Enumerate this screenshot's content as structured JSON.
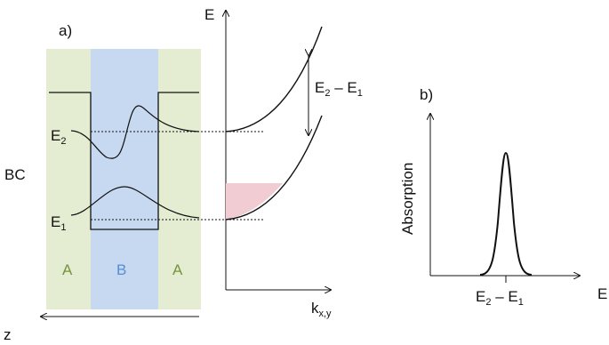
{
  "panel_a": {
    "label": "a)",
    "band_label": "BC",
    "levels": {
      "e2": "E",
      "e2_sub": "2",
      "e1": "E",
      "e1_sub": "1"
    },
    "regions": {
      "left": "A",
      "middle": "B",
      "right": "A"
    },
    "axis_z": "z"
  },
  "dispersion": {
    "axis_e": "E",
    "axis_k": "k",
    "axis_k_sub": "x,y",
    "gap_label": {
      "e2": "E",
      "e2_sub": "2",
      "dash": " – ",
      "e1": "E",
      "e1_sub": "1"
    }
  },
  "panel_b": {
    "label": "b)",
    "ylabel": "Absorption",
    "xlabel": "E",
    "peak_label": {
      "e2": "E",
      "e2_sub": "2",
      "dash": " – ",
      "e1": "E",
      "e1_sub": "1"
    }
  },
  "colors": {
    "barrier_fill": "#e4ecd2",
    "well_fill": "#c6d9f1",
    "shade_fill": "#f2ccd3",
    "label_a": "#77933c",
    "label_b": "#558ed5"
  }
}
